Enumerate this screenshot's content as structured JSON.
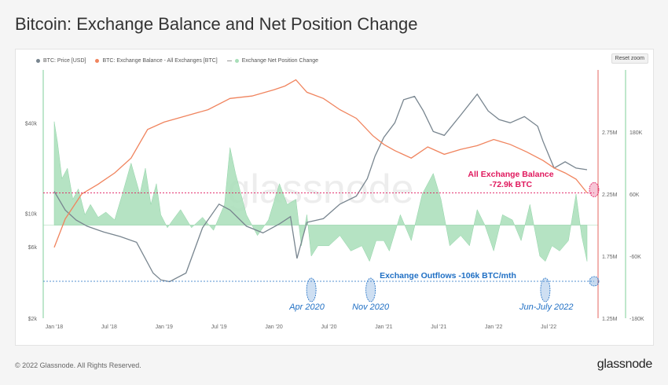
{
  "title": "Bitcoin: Exchange Balance and Net Position Change",
  "legend": {
    "price": "BTC: Price [USD]",
    "balance": "BTC: Exchange Balance - All Exchanges [BTC]",
    "netpos": "Exchange Net Position Change"
  },
  "reset_zoom": "Reset zoom",
  "watermark": "glassnode",
  "footer": {
    "copyright": "© 2022 Glassnode. All Rights Reserved.",
    "logo": "glassnode"
  },
  "colors": {
    "price": "#78858f",
    "balance": "#f0845e",
    "netpos": "#a8deb9",
    "balance_annot": "#e0185d",
    "outflow_annot": "#1f6fc4",
    "marker": "#e5665f"
  },
  "chart_data": {
    "type": "line",
    "x_ticks": [
      "Jan '18",
      "Jul '18",
      "Jan '19",
      "Jul '19",
      "Jan '20",
      "Jul '20",
      "Jan '21",
      "Jul '21",
      "Jan '22",
      "Jul '22"
    ],
    "y_left_ticks": [
      "$2k",
      "$6k",
      "$10k",
      "$40k"
    ],
    "y_balance_ticks": [
      "1.25M",
      "1.75M",
      "2.25M",
      "2.75M"
    ],
    "y_netpos_ticks": [
      "-180K",
      "-60K",
      "60K",
      "180K"
    ],
    "y_left_scale": "log",
    "y_left_range": [
      2000,
      90000
    ],
    "balance_range": [
      1250000,
      3250000
    ],
    "netpos_range": [
      -180000,
      300000
    ],
    "series": [
      {
        "name": "BTC: Price [USD]",
        "axis": "left",
        "x": [
          2018.0,
          2018.1,
          2018.2,
          2018.3,
          2018.45,
          2018.6,
          2018.75,
          2018.9,
          2018.97,
          2019.05,
          2019.2,
          2019.35,
          2019.5,
          2019.6,
          2019.75,
          2019.9,
          2020.05,
          2020.15,
          2020.21,
          2020.3,
          2020.45,
          2020.6,
          2020.75,
          2020.85,
          2020.92,
          2021.0,
          2021.1,
          2021.18,
          2021.28,
          2021.36,
          2021.45,
          2021.55,
          2021.7,
          2021.85,
          2021.95,
          2022.05,
          2022.15,
          2022.28,
          2022.4,
          2022.45,
          2022.55,
          2022.65,
          2022.75,
          2022.85
        ],
        "y": [
          14000,
          10500,
          9000,
          8200,
          7500,
          7000,
          6400,
          4000,
          3600,
          3500,
          4000,
          8000,
          11500,
          10500,
          8200,
          7400,
          8500,
          9500,
          5000,
          8700,
          9200,
          11500,
          13000,
          17000,
          24000,
          32000,
          40000,
          57000,
          60000,
          48000,
          35000,
          33000,
          45000,
          62000,
          48000,
          42000,
          40000,
          44000,
          38000,
          30000,
          20000,
          22000,
          20000,
          19500
        ]
      },
      {
        "name": "BTC: Exchange Balance - All Exchanges [BTC]",
        "axis": "balance",
        "x": [
          2018.0,
          2018.1,
          2018.25,
          2018.4,
          2018.55,
          2018.7,
          2018.85,
          2019.0,
          2019.2,
          2019.4,
          2019.6,
          2019.8,
          2020.0,
          2020.1,
          2020.2,
          2020.3,
          2020.45,
          2020.6,
          2020.75,
          2020.9,
          2021.0,
          2021.1,
          2021.25,
          2021.4,
          2021.55,
          2021.7,
          2021.85,
          2022.0,
          2022.15,
          2022.3,
          2022.45,
          2022.55,
          2022.65,
          2022.75,
          2022.85
        ],
        "y": [
          1820000,
          2050000,
          2250000,
          2330000,
          2420000,
          2540000,
          2770000,
          2830000,
          2880000,
          2930000,
          3020000,
          3040000,
          3090000,
          3120000,
          3170000,
          3070000,
          3020000,
          2930000,
          2860000,
          2720000,
          2650000,
          2600000,
          2540000,
          2630000,
          2570000,
          2610000,
          2640000,
          2690000,
          2650000,
          2590000,
          2520000,
          2460000,
          2420000,
          2370000,
          2260000
        ]
      },
      {
        "name": "Exchange Net Position Change",
        "axis": "netpos",
        "type": "area",
        "x": [
          2018.0,
          2018.03,
          2018.07,
          2018.12,
          2018.17,
          2018.22,
          2018.28,
          2018.33,
          2018.4,
          2018.47,
          2018.55,
          2018.62,
          2018.7,
          2018.78,
          2018.83,
          2018.88,
          2018.93,
          2018.97,
          2019.03,
          2019.08,
          2019.15,
          2019.25,
          2019.35,
          2019.45,
          2019.55,
          2019.6,
          2019.65,
          2019.75,
          2019.85,
          2019.95,
          2020.05,
          2020.12,
          2020.2,
          2020.25,
          2020.3,
          2020.34,
          2020.4,
          2020.5,
          2020.6,
          2020.7,
          2020.8,
          2020.87,
          2020.93,
          2021.0,
          2021.05,
          2021.15,
          2021.25,
          2021.35,
          2021.45,
          2021.52,
          2021.6,
          2021.7,
          2021.78,
          2021.85,
          2021.92,
          2022.0,
          2022.08,
          2022.17,
          2022.25,
          2022.33,
          2022.42,
          2022.47,
          2022.53,
          2022.6,
          2022.68,
          2022.75,
          2022.8,
          2022.85
        ],
        "y": [
          200000,
          160000,
          90000,
          110000,
          50000,
          70000,
          20000,
          40000,
          15000,
          25000,
          10000,
          60000,
          120000,
          60000,
          110000,
          40000,
          80000,
          20000,
          -5000,
          10000,
          30000,
          -5000,
          15000,
          -10000,
          40000,
          150000,
          100000,
          20000,
          -20000,
          10000,
          80000,
          40000,
          50000,
          -40000,
          20000,
          -60000,
          -40000,
          -40000,
          -20000,
          -50000,
          -40000,
          -70000,
          -30000,
          -30000,
          -50000,
          20000,
          -30000,
          60000,
          100000,
          50000,
          -40000,
          -20000,
          -40000,
          30000,
          0,
          -50000,
          20000,
          10000,
          -30000,
          40000,
          -60000,
          -70000,
          -40000,
          -50000,
          -30000,
          60000,
          -20000,
          -70000
        ]
      }
    ],
    "annotations": {
      "balance_value": "All Exchange Balance",
      "balance_value_2": "-72.9k BTC",
      "outflow_label": "Exchange Outflows -106k BTC/mth",
      "periods": [
        "Apr 2020",
        "Nov 2020",
        "Jun-July 2022"
      ]
    }
  }
}
